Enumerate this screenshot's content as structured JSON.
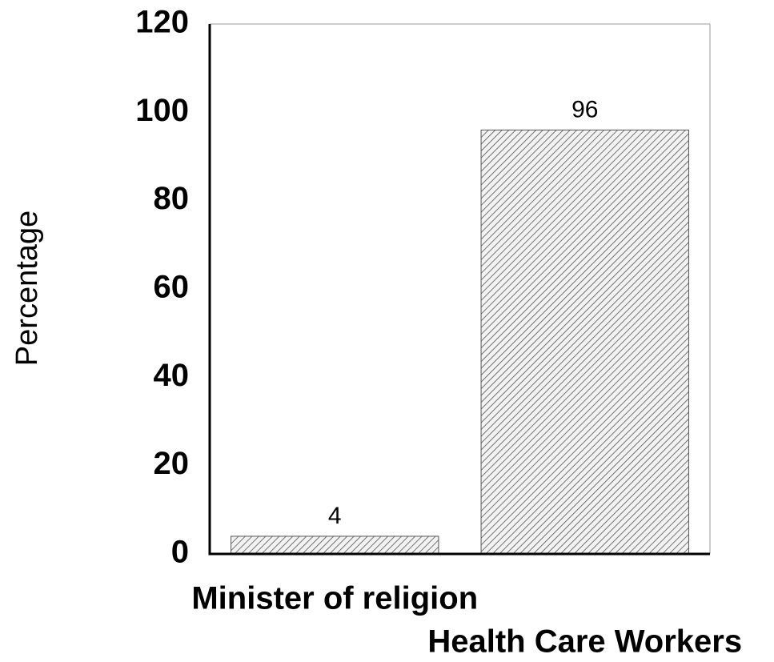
{
  "chart_data": {
    "type": "bar",
    "y_label": "Percentage",
    "categories": [
      "Minister of religion",
      "Health Care Workers"
    ],
    "values": [
      4,
      96
    ],
    "color": "#555555",
    "ylim": [
      0,
      120
    ],
    "yticks": [
      0,
      20,
      40,
      60,
      80,
      100,
      120
    ],
    "grid": false
  }
}
